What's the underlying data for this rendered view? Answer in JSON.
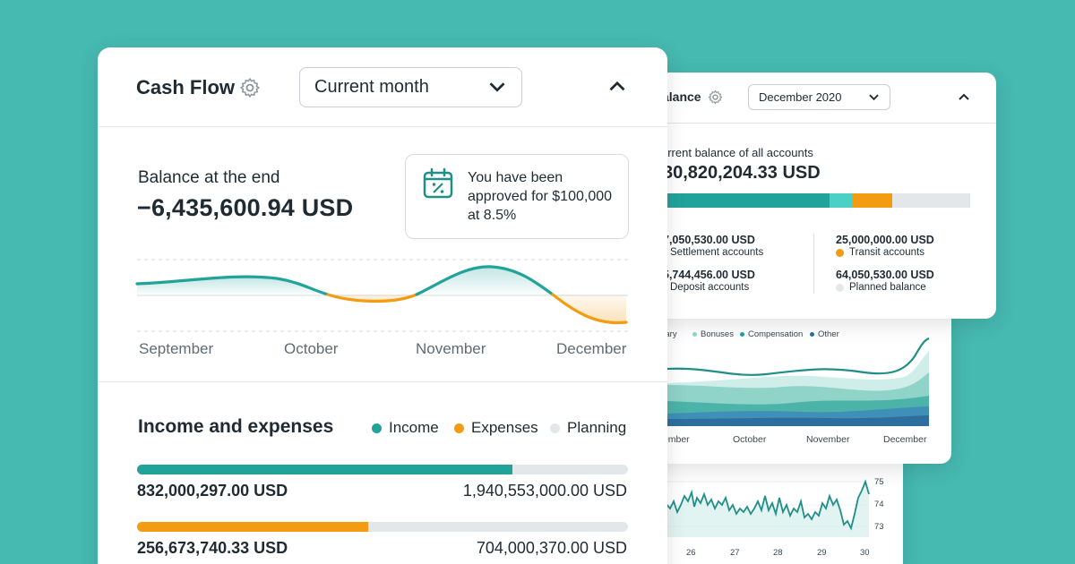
{
  "cash_flow": {
    "title": "Cash Flow",
    "period_select": "Current month",
    "balance_label": "Balance at the end",
    "balance_value": "−6,435,600.94 USD",
    "approved_message": "You have been approved for $100,000 at 8.5%",
    "chart_months": [
      "September",
      "October",
      "November",
      "December"
    ],
    "income_expenses": {
      "title": "Income and expenses",
      "legend": [
        "Income",
        "Expenses",
        "Planning"
      ],
      "income_amount": "832,000,297.00 USD",
      "income_planned": "1,940,553,000.00 USD",
      "income_progress": 0.765,
      "expenses_amount": "256,673,740.33 USD",
      "expenses_planned": "704,000,370.00 USD",
      "expenses_progress": 0.47
    }
  },
  "balance": {
    "title": "alance",
    "period_select": "December 2020",
    "current_label": "urrent balance of all accounts",
    "current_value": "30,820,204.33 USD",
    "distribution": [
      0.54,
      0.075,
      0.13,
      0.255
    ],
    "accounts": [
      {
        "amount": "7,050,530.00 USD",
        "label": "Settlement accounts"
      },
      {
        "amount": "25,000,000.00 USD",
        "label": "Transit accounts"
      },
      {
        "amount": "5,744,456.00 USD",
        "label": "Deposit accounts"
      },
      {
        "amount": "64,050,530.00 USD",
        "label": "Planned balance"
      }
    ]
  },
  "salary_chart": {
    "legend": [
      "alary",
      "Bonuses",
      "Compensation",
      "Other"
    ],
    "months": [
      "tember",
      "October",
      "November",
      "December"
    ]
  },
  "stock_chart": {
    "y_ticks": [
      "75",
      "74",
      "73"
    ],
    "x_ticks": [
      "26",
      "27",
      "28",
      "29",
      "30"
    ]
  },
  "colors": {
    "background": "#46b9b1",
    "income": "#22a39a",
    "expenses": "#f39c12",
    "planning": "#e4e7ea",
    "transit": "#f39c12",
    "settlement": "#22a39a",
    "light_teal": "#48d1c4",
    "dark_blue": "#2d6e9e"
  }
}
